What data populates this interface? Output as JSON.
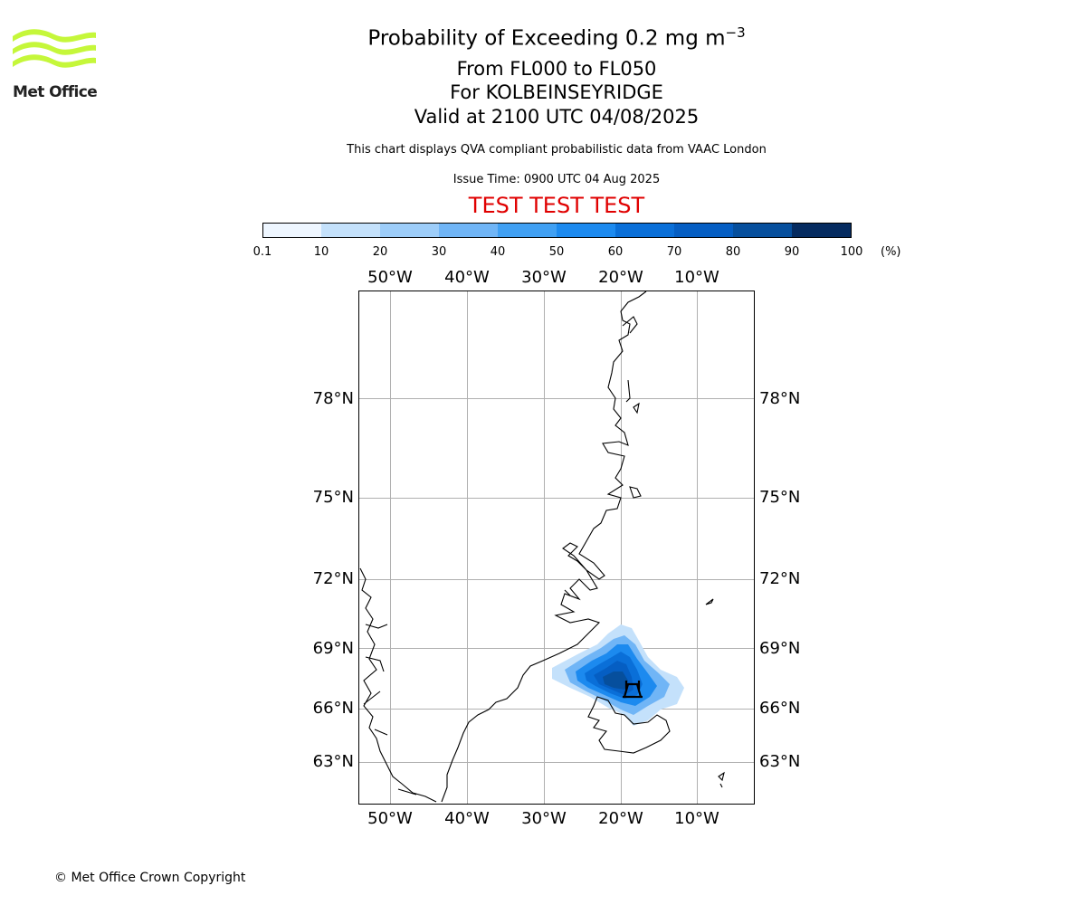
{
  "logo": {
    "text": "Met Office",
    "color": "#c5f73a"
  },
  "title": {
    "main_prefix": "Probability of Exceeding 0.2 mg m",
    "main_sup": "−3",
    "line2": "From FL000 to FL050",
    "line3": "For KOLBEINSEYRIDGE",
    "line4": "Valid at 2100 UTC 04/08/2025"
  },
  "description": "This chart displays QVA compliant probabilistic data from VAAC London",
  "issue_time": "Issue Time: 0900 UTC 04 Aug 2025",
  "test_banner": {
    "text": "TEST TEST TEST",
    "color": "#e00000"
  },
  "colorbar": {
    "ticks": [
      "0.1",
      "10",
      "20",
      "30",
      "40",
      "50",
      "60",
      "70",
      "80",
      "90",
      "100"
    ],
    "unit": "(%)",
    "colors": [
      "#eef6ff",
      "#c4e1fb",
      "#9dcdf9",
      "#70b5f6",
      "#40a0f3",
      "#1c8aef",
      "#0a6fd8",
      "#055ec3",
      "#064f9d",
      "#052b60"
    ]
  },
  "map": {
    "lon_labels": [
      "50°W",
      "40°W",
      "30°W",
      "20°W",
      "10°W"
    ],
    "lat_labels": [
      "78°N",
      "75°N",
      "72°N",
      "69°N",
      "66°N",
      "63°N"
    ],
    "volcano_symbol_color": "#000000"
  },
  "copyright": "© Met Office Crown Copyright"
}
